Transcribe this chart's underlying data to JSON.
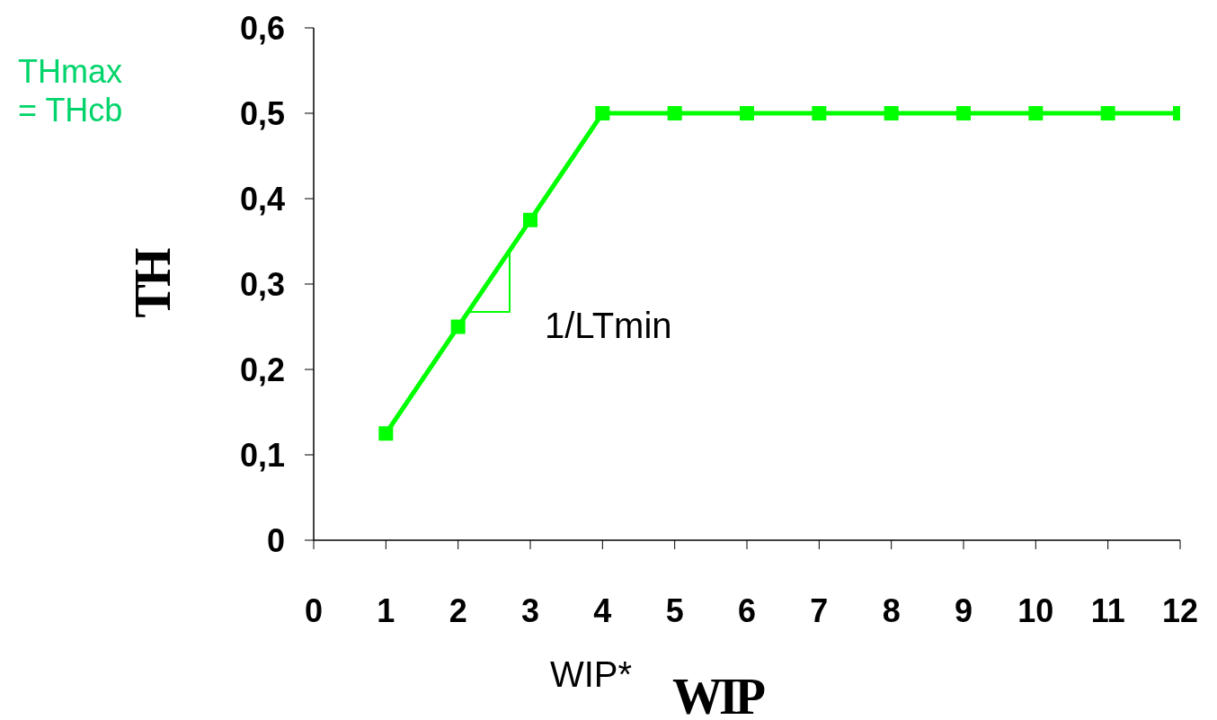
{
  "chart_data": {
    "type": "line",
    "xlabel": "WIP",
    "ylabel": "TH",
    "x": [
      1,
      2,
      3,
      4,
      5,
      6,
      7,
      8,
      9,
      10,
      11,
      12
    ],
    "series": [
      {
        "color": "#00ff00",
        "values": [
          0.125,
          0.25,
          0.375,
          0.5,
          0.5,
          0.5,
          0.5,
          0.5,
          0.5,
          0.5,
          0.5,
          0.5
        ]
      }
    ],
    "xlim": [
      0,
      12
    ],
    "xticks": [
      0,
      1,
      2,
      3,
      4,
      5,
      6,
      7,
      8,
      9,
      10,
      11,
      12
    ],
    "ylim": [
      0,
      0.6
    ],
    "yticks": [
      0,
      {
        "value": 0.1,
        "label": "0,1"
      },
      {
        "value": 0.2,
        "label": "0,2"
      },
      {
        "value": 0.3,
        "label": "0,3"
      },
      {
        "value": 0.4,
        "label": "0,4"
      },
      {
        "value": 0.5,
        "label": "0,5"
      },
      {
        "value": 0.6,
        "label": "0,6"
      }
    ],
    "marker": "square",
    "line_style": "solid",
    "grid": false,
    "legend": false,
    "annotations": [
      "THmax = THcb",
      "1/LTmin",
      "WIP*"
    ]
  }
}
